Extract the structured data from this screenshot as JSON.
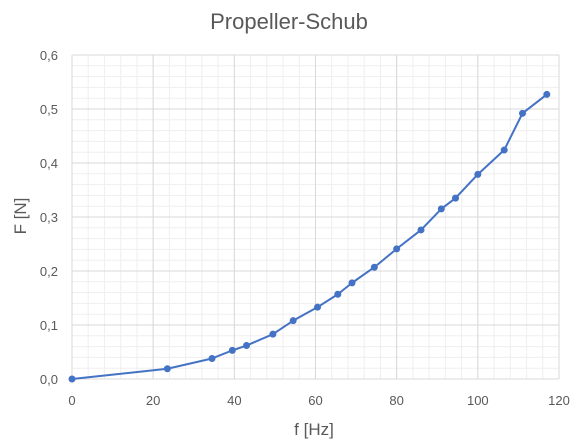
{
  "chart_data": {
    "type": "line",
    "title": "Propeller-Schub",
    "xlabel": "f [Hz]",
    "ylabel": "F [N]",
    "xlim": [
      0,
      120
    ],
    "ylim": [
      0,
      0.6
    ],
    "x_ticks": [
      0,
      20,
      40,
      60,
      80,
      100,
      120
    ],
    "x_tick_labels": [
      "0",
      "20",
      "40",
      "60",
      "80",
      "100",
      "120"
    ],
    "y_ticks": [
      0,
      0.1,
      0.2,
      0.3,
      0.4,
      0.5,
      0.6
    ],
    "y_tick_labels": [
      "0,0",
      "0,1",
      "0,2",
      "0,3",
      "0,4",
      "0,5",
      "0,6"
    ],
    "grid": true,
    "minor_grid": true,
    "legend": "none",
    "series": [
      {
        "x": [
          0,
          23.5,
          34.5,
          39.5,
          43,
          49.5,
          54.5,
          60.5,
          65.5,
          69,
          74.5,
          80,
          86,
          91,
          94.5,
          100,
          106.5,
          111,
          117
        ],
        "y": [
          0,
          0.019,
          0.038,
          0.053,
          0.062,
          0.083,
          0.108,
          0.133,
          0.157,
          0.178,
          0.207,
          0.241,
          0.276,
          0.315,
          0.335,
          0.379,
          0.424,
          0.492,
          0.527
        ],
        "color": "#4472C4"
      }
    ],
    "colors": {
      "line": "#4472C4",
      "major_grid": "#d9d9d9",
      "minor_grid": "#efefef",
      "text": "#595959"
    }
  }
}
